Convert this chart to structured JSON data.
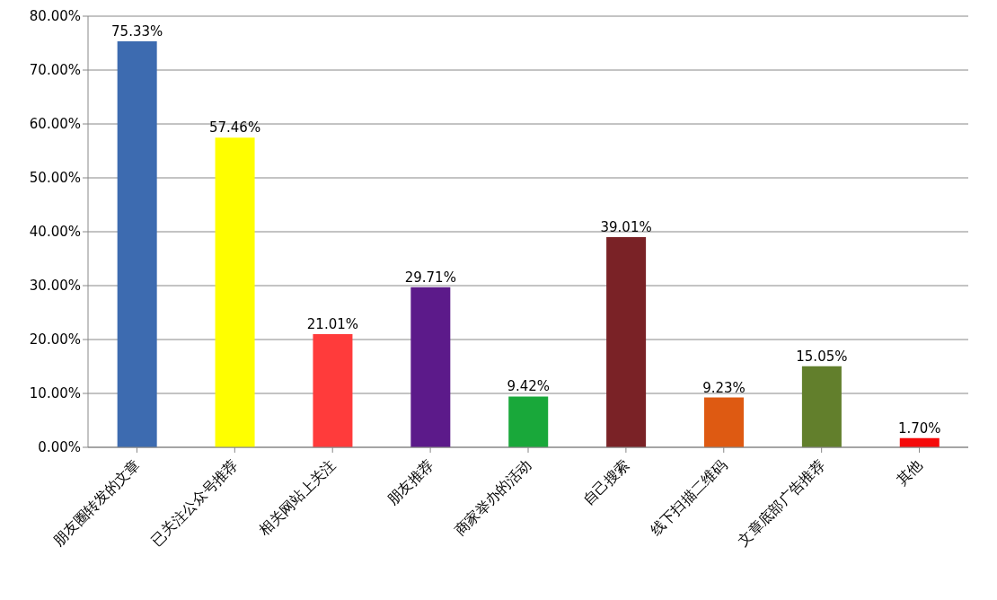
{
  "chart_data": {
    "type": "bar",
    "categories": [
      "朋友圈转发的文章",
      "已关注公众号推荐",
      "相关网站上关注",
      "朋友推荐",
      "商家举办的活动",
      "自己搜索",
      "线下扫描二维码",
      "文章底部广告推荐",
      "其他"
    ],
    "values": [
      75.33,
      57.46,
      21.01,
      29.71,
      9.42,
      39.01,
      9.23,
      15.05,
      1.7
    ],
    "colors": [
      "#3d6bb0",
      "#ffff00",
      "#ff3b3b",
      "#5c1a8a",
      "#19a83a",
      "#7a2226",
      "#de5a12",
      "#627f2c",
      "#f50a0a"
    ],
    "value_labels": [
      "75.33%",
      "57.46%",
      "21.01%",
      "29.71%",
      "9.42%",
      "39.01%",
      "9.23%",
      "15.05%",
      "1.70%"
    ],
    "ylim": [
      0,
      80
    ],
    "yticks": [
      {
        "value": 0,
        "label": "0.00%"
      },
      {
        "value": 10,
        "label": "10.00%"
      },
      {
        "value": 20,
        "label": "20.00%"
      },
      {
        "value": 30,
        "label": "30.00%"
      },
      {
        "value": 40,
        "label": "40.00%"
      },
      {
        "value": 50,
        "label": "50.00%"
      },
      {
        "value": 60,
        "label": "60.00%"
      },
      {
        "value": 70,
        "label": "70.00%"
      },
      {
        "value": 80,
        "label": "80.00%"
      }
    ],
    "grid": "y"
  }
}
